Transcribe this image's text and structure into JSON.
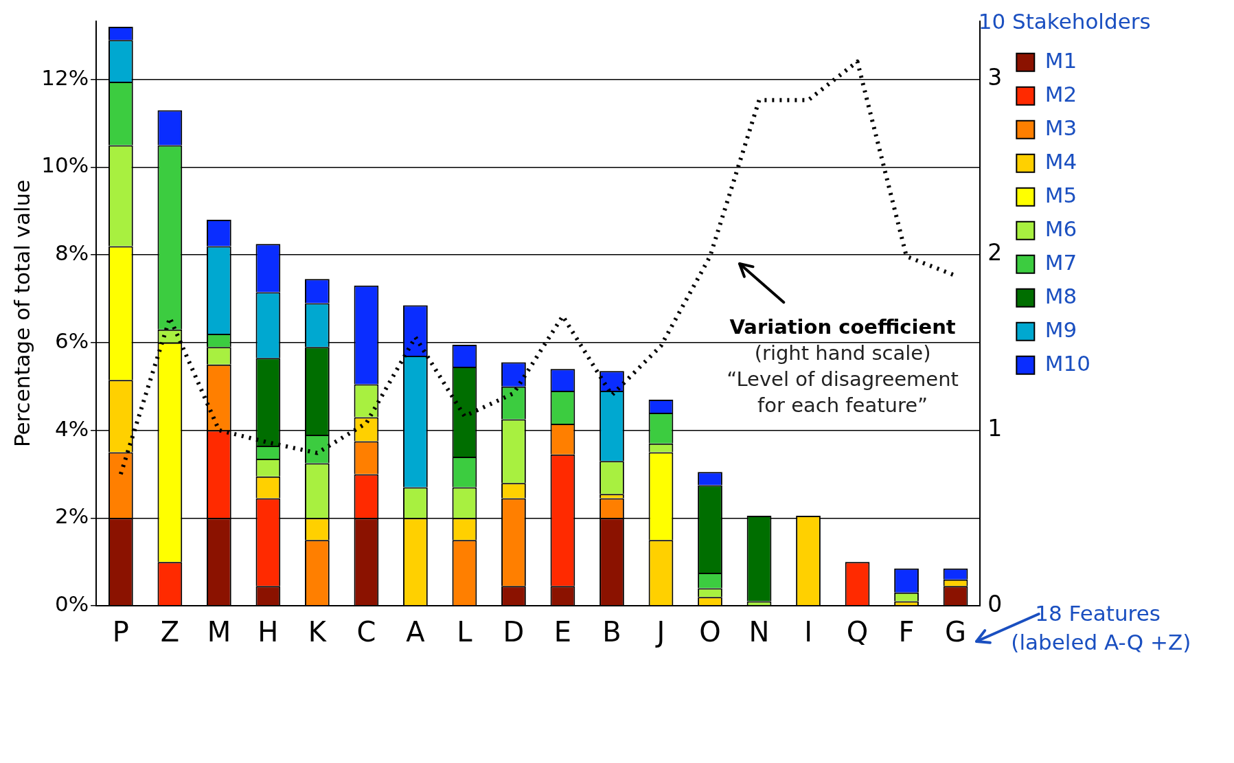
{
  "chart_data": {
    "type": "bar",
    "stacked": true,
    "categories": [
      "P",
      "Z",
      "M",
      "H",
      "K",
      "C",
      "A",
      "L",
      "D",
      "E",
      "B",
      "J",
      "O",
      "N",
      "I",
      "Q",
      "F",
      "G"
    ],
    "series": [
      {
        "name": "M1",
        "color": "#8b1200",
        "values": [
          2,
          0,
          2,
          0.45,
          0,
          2,
          0,
          0,
          0.45,
          0.45,
          2,
          0,
          0,
          0,
          0,
          0,
          0,
          0.45
        ]
      },
      {
        "name": "M2",
        "color": "#ff2a00",
        "values": [
          0,
          1,
          2,
          2,
          0,
          1,
          0,
          0,
          0,
          3,
          0,
          0,
          0,
          0,
          0,
          1,
          0,
          0
        ]
      },
      {
        "name": "M3",
        "color": "#ff7f00",
        "values": [
          1.5,
          0,
          1.5,
          0,
          1.5,
          0.75,
          0,
          1.5,
          2,
          0.7,
          0.45,
          0,
          0,
          0,
          0,
          0,
          0,
          0
        ]
      },
      {
        "name": "M4",
        "color": "#ffd000",
        "values": [
          1.65,
          0,
          0,
          0.5,
          0.5,
          0.55,
          2,
          0.5,
          0.35,
          0,
          0.1,
          1.5,
          0.2,
          0,
          2.05,
          0,
          0.1,
          0.15
        ]
      },
      {
        "name": "M5",
        "color": "#ffff00",
        "values": [
          3.05,
          5,
          0,
          0,
          0,
          0,
          0,
          0,
          0,
          0,
          0,
          2,
          0,
          0,
          0,
          0,
          0,
          0
        ]
      },
      {
        "name": "M6",
        "color": "#a8f040",
        "values": [
          2.3,
          0.3,
          0.4,
          0.4,
          1.25,
          0.75,
          0.7,
          0.7,
          1.45,
          0,
          0.75,
          0.2,
          0.2,
          0.1,
          0,
          0,
          0.2,
          0
        ]
      },
      {
        "name": "M7",
        "color": "#3ccc40",
        "values": [
          1.45,
          4.2,
          0.3,
          0.3,
          0.65,
          0,
          0,
          0.7,
          0.75,
          0.75,
          0,
          0.7,
          0.35,
          0,
          0,
          0,
          0,
          0
        ]
      },
      {
        "name": "M8",
        "color": "#006e00",
        "values": [
          0,
          0,
          0,
          2,
          2,
          0,
          0,
          2.05,
          0,
          0,
          0,
          0,
          2,
          1.95,
          0,
          0,
          0,
          0
        ]
      },
      {
        "name": "M9",
        "color": "#00a8d0",
        "values": [
          0.95,
          0,
          2,
          1.5,
          1,
          0,
          3,
          0,
          0,
          0,
          1.6,
          0,
          0,
          0,
          0,
          0,
          0,
          0
        ]
      },
      {
        "name": "M10",
        "color": "#0a2dff",
        "values": [
          0.3,
          0.8,
          0.6,
          1.1,
          0.55,
          2.25,
          1.15,
          0.5,
          0.55,
          0.5,
          0.45,
          0.3,
          0.3,
          0,
          0,
          0,
          0.55,
          0.25
        ]
      },
      {
        "name": "Variation coefficient",
        "type": "line",
        "axis": "y2",
        "color": "#000000",
        "values": [
          0.75,
          1.64,
          1.0,
          0.93,
          0.87,
          1.04,
          1.53,
          1.08,
          1.21,
          1.65,
          1.2,
          1.48,
          1.99,
          2.88,
          2.88,
          3.1,
          1.99,
          1.88
        ]
      }
    ],
    "ylabel": "Percentage of total value",
    "ylim": [
      0,
      13.33
    ],
    "yticks": [
      {
        "value": 0,
        "label": "0%"
      },
      {
        "value": 2,
        "label": "2%"
      },
      {
        "value": 4,
        "label": "4%"
      },
      {
        "value": 6,
        "label": "6%"
      },
      {
        "value": 8,
        "label": "8%"
      },
      {
        "value": 10,
        "label": "10%"
      },
      {
        "value": 12,
        "label": "12%"
      }
    ],
    "y2lim": [
      0,
      3.33
    ],
    "y2ticks": [
      0,
      1,
      2,
      3
    ],
    "grid": "y",
    "legend": "right",
    "legend_title": "10 Stakeholders",
    "line_style": "dotted",
    "marker": "none",
    "annotations": [
      "(right hand scale)",
      "“Level of disagreement\nfor each feature”",
      "18 Features\n(labeled A-Q +Z)"
    ]
  }
}
